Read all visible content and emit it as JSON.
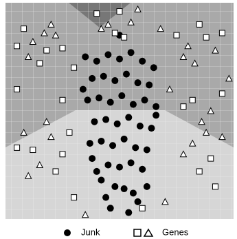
{
  "chart_data": {
    "type": "scatter",
    "xlim": [
      0,
      100
    ],
    "ylim": [
      0,
      100
    ],
    "series": [
      {
        "name": "Junk",
        "color": "#000000",
        "marker": "circle",
        "x": [
          35,
          40,
          45,
          50,
          55,
          60,
          65,
          38,
          43,
          48,
          53,
          58,
          63,
          36,
          41,
          46,
          51,
          56,
          61,
          66,
          39,
          44,
          49,
          54,
          59,
          64,
          37,
          42,
          47,
          52,
          57,
          62,
          45,
          50,
          55,
          40,
          60,
          48,
          52,
          56,
          44,
          58,
          34,
          66,
          50,
          46,
          54,
          42,
          62,
          38
        ],
        "values": [
          75,
          73,
          76,
          74,
          77,
          73,
          70,
          65,
          66,
          64,
          67,
          63,
          62,
          55,
          56,
          54,
          57,
          53,
          55,
          52,
          45,
          46,
          44,
          47,
          43,
          42,
          35,
          36,
          34,
          37,
          33,
          32,
          25,
          24,
          26,
          22,
          23,
          15,
          14,
          12,
          10,
          8,
          60,
          48,
          85,
          5,
          3,
          18,
          15,
          28
        ]
      },
      {
        "name": "Genes",
        "color": "#000000",
        "marker": [
          "square",
          "triangle"
        ],
        "x": [
          8,
          12,
          18,
          22,
          15,
          10,
          25,
          20,
          5,
          17,
          40,
          45,
          50,
          55,
          48,
          42,
          52,
          58,
          75,
          80,
          88,
          92,
          85,
          78,
          95,
          83,
          82,
          90,
          95,
          86,
          78,
          8,
          12,
          20,
          25,
          15,
          5,
          18,
          28,
          10,
          22,
          82,
          90,
          95,
          85,
          78,
          92,
          88,
          30,
          70,
          25,
          72,
          30,
          68,
          5,
          98,
          60,
          35
        ],
        "values": [
          88,
          82,
          78,
          85,
          72,
          75,
          79,
          90,
          80,
          86,
          95,
          90,
          96,
          91,
          86,
          88,
          84,
          97,
          85,
          80,
          84,
          78,
          90,
          75,
          86,
          72,
          55,
          50,
          58,
          45,
          52,
          40,
          32,
          38,
          30,
          25,
          33,
          45,
          40,
          20,
          22,
          35,
          28,
          38,
          22,
          30,
          15,
          40,
          10,
          8,
          55,
          60,
          70,
          88,
          60,
          65,
          5,
          2
        ],
        "shapes": [
          "square",
          "triangle",
          "square",
          "triangle",
          "square",
          "triangle",
          "square",
          "triangle",
          "square",
          "triangle",
          "square",
          "triangle",
          "square",
          "triangle",
          "square",
          "triangle",
          "square",
          "triangle",
          "square",
          "triangle",
          "square",
          "triangle",
          "square",
          "triangle",
          "square",
          "triangle",
          "square",
          "triangle",
          "square",
          "triangle",
          "square",
          "triangle",
          "square",
          "triangle",
          "square",
          "triangle",
          "square",
          "triangle",
          "square",
          "triangle",
          "square",
          "triangle",
          "square",
          "triangle",
          "square",
          "triangle",
          "square",
          "triangle",
          "square",
          "triangle",
          "square",
          "triangle",
          "square",
          "triangle",
          "square",
          "triangle",
          "square",
          "triangle"
        ]
      }
    ]
  }
}
